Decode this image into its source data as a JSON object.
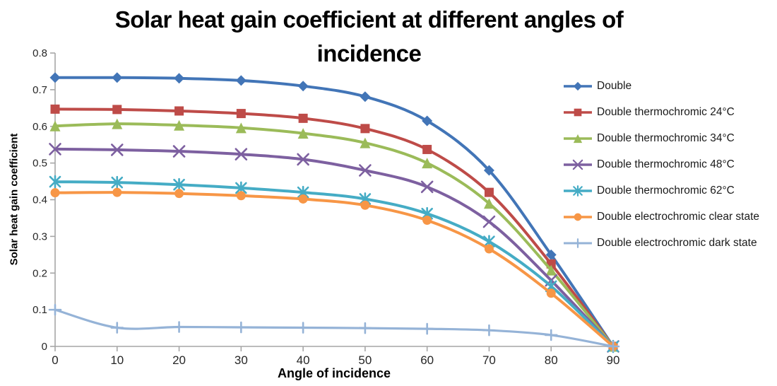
{
  "title": {
    "full": "Solar heat gain coefficient at different angles of incidence",
    "line1": "Solar heat gain coefficient at different angles of",
    "line2": "incidence"
  },
  "chart_data": {
    "type": "line",
    "title": "Solar heat gain coefficient at different angles of incidence",
    "xlabel": "Angle of incidence",
    "ylabel": "Solar heat gain coefficient",
    "x": [
      0,
      10,
      20,
      30,
      40,
      50,
      60,
      70,
      80,
      90
    ],
    "x_tick_labels": [
      "0",
      "10",
      "20",
      "30",
      "40",
      "50",
      "60",
      "70",
      "80",
      "90"
    ],
    "y_ticks": [
      0,
      0.1,
      0.2,
      0.3,
      0.4,
      0.5,
      0.6,
      0.7,
      0.8
    ],
    "y_tick_labels": [
      "0",
      "0.1",
      "0.2",
      "0.3",
      "0.4",
      "0.5",
      "0.6",
      "0.7",
      "0.8"
    ],
    "xlim": [
      0,
      90
    ],
    "ylim": [
      0,
      0.8
    ],
    "grid": false,
    "legend_position": "right",
    "axis_color": "#a6a6a6",
    "series": [
      {
        "name": "Double",
        "marker": "diamond",
        "color": "#4275b7",
        "values": [
          0.733,
          0.733,
          0.731,
          0.725,
          0.71,
          0.681,
          0.615,
          0.48,
          0.25,
          0
        ]
      },
      {
        "name": "Double thermochromic 24°C",
        "marker": "square",
        "color": "#be4b48",
        "values": [
          0.647,
          0.646,
          0.642,
          0.635,
          0.622,
          0.594,
          0.537,
          0.42,
          0.225,
          0
        ]
      },
      {
        "name": "Double thermochromic 34°C",
        "marker": "triangle",
        "color": "#9bbb59",
        "values": [
          0.601,
          0.607,
          0.603,
          0.596,
          0.581,
          0.555,
          0.5,
          0.39,
          0.208,
          0
        ]
      },
      {
        "name": "Double thermochromic 48°C",
        "marker": "x",
        "color": "#7d60a0",
        "values": [
          0.538,
          0.536,
          0.532,
          0.524,
          0.51,
          0.48,
          0.435,
          0.34,
          0.18,
          0
        ]
      },
      {
        "name": "Double thermochromic 62°C",
        "marker": "asterisk",
        "color": "#45acc5",
        "values": [
          0.449,
          0.447,
          0.441,
          0.432,
          0.42,
          0.402,
          0.362,
          0.286,
          0.164,
          0
        ]
      },
      {
        "name": "Double electrochromic clear state",
        "marker": "circle",
        "color": "#f79646",
        "values": [
          0.419,
          0.42,
          0.417,
          0.411,
          0.402,
          0.385,
          0.344,
          0.266,
          0.145,
          0
        ]
      },
      {
        "name": "Double electrochromic dark state",
        "marker": "plus",
        "color": "#95b3d7",
        "values": [
          0.1,
          0.051,
          0.053,
          0.052,
          0.051,
          0.05,
          0.048,
          0.044,
          0.031,
          0
        ]
      }
    ]
  }
}
